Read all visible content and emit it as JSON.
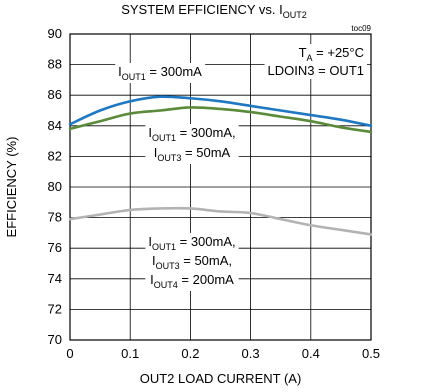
{
  "chart_data": {
    "type": "line",
    "title": {
      "main": "SYSTEM EFFICIENCY vs. I",
      "sub": "OUT2"
    },
    "figure_tag": "toc09",
    "xlabel": "OUT2 LOAD CURRENT (A)",
    "ylabel": "EFFICIENCY (%)",
    "xlim": [
      0,
      0.5
    ],
    "ylim": [
      70,
      90
    ],
    "x_ticks": [
      "0",
      "0.1",
      "0.2",
      "0.3",
      "0.4",
      "0.5"
    ],
    "y_ticks": [
      "90",
      "88",
      "86",
      "84",
      "82",
      "80",
      "78",
      "76",
      "74",
      "72",
      "70"
    ],
    "grid": true,
    "conditions": [
      {
        "parts": [
          {
            "text": "T"
          },
          {
            "text": "A",
            "sub": true
          },
          {
            "text": " = +25°C"
          }
        ]
      },
      {
        "parts": [
          {
            "text": "LDOIN3 = OUT1"
          }
        ]
      }
    ],
    "annotations": [
      {
        "lines": [
          {
            "parts": [
              {
                "text": "I"
              },
              {
                "text": "OUT1",
                "sub": true
              },
              {
                "text": " = 300mA"
              }
            ]
          }
        ]
      },
      {
        "lines": [
          {
            "parts": [
              {
                "text": "I"
              },
              {
                "text": "OUT1",
                "sub": true
              },
              {
                "text": " = 300mA,"
              }
            ]
          },
          {
            "parts": [
              {
                "text": "I"
              },
              {
                "text": "OUT3",
                "sub": true
              },
              {
                "text": " = 50mA"
              }
            ]
          }
        ]
      },
      {
        "lines": [
          {
            "parts": [
              {
                "text": "I"
              },
              {
                "text": "OUT1",
                "sub": true
              },
              {
                "text": " = 300mA,"
              }
            ]
          },
          {
            "parts": [
              {
                "text": "I"
              },
              {
                "text": "OUT3",
                "sub": true
              },
              {
                "text": " = 50mA,"
              }
            ]
          },
          {
            "parts": [
              {
                "text": "I"
              },
              {
                "text": "OUT4",
                "sub": true
              },
              {
                "text": " = 200mA"
              }
            ]
          }
        ]
      }
    ],
    "series": [
      {
        "color": "#1f78c1",
        "x": [
          0,
          0.05,
          0.1,
          0.15,
          0.2,
          0.25,
          0.3,
          0.35,
          0.4,
          0.45,
          0.5
        ],
        "y": [
          84.1,
          85.0,
          85.6,
          85.9,
          85.8,
          85.6,
          85.3,
          85.0,
          84.7,
          84.4,
          84.0
        ]
      },
      {
        "color": "#5b8a3a",
        "x": [
          0,
          0.05,
          0.1,
          0.15,
          0.2,
          0.25,
          0.3,
          0.35,
          0.4,
          0.45,
          0.5
        ],
        "y": [
          83.8,
          84.3,
          84.8,
          85.0,
          85.2,
          85.1,
          84.9,
          84.6,
          84.3,
          83.9,
          83.6
        ]
      },
      {
        "color": "#b3b3b3",
        "x": [
          0,
          0.05,
          0.1,
          0.15,
          0.2,
          0.25,
          0.3,
          0.35,
          0.4,
          0.45,
          0.5
        ],
        "y": [
          77.9,
          78.2,
          78.5,
          78.6,
          78.6,
          78.4,
          78.3,
          77.9,
          77.5,
          77.2,
          76.9
        ]
      }
    ]
  }
}
